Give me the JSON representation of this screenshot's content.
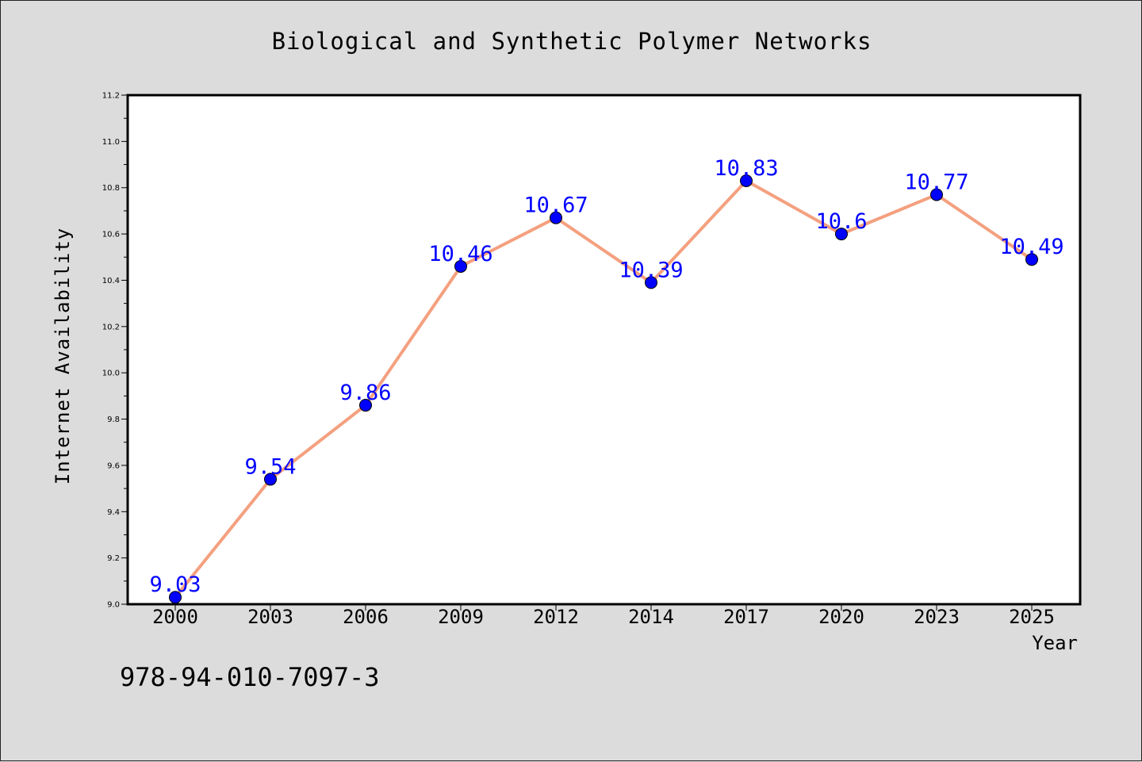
{
  "figure": {
    "isbn_text": "978-94-010-7097-3"
  },
  "chart_data": {
    "type": "line",
    "title": "Biological and Synthetic Polymer Networks",
    "xlabel": "Year",
    "ylabel": "Internet Availability",
    "categories": [
      "2000",
      "2003",
      "2006",
      "2009",
      "2012",
      "2014",
      "2017",
      "2020",
      "2023",
      "2025"
    ],
    "series": [
      {
        "values": [
          9.03,
          9.54,
          9.86,
          10.46,
          10.67,
          10.39,
          10.83,
          10.6,
          10.77,
          10.49
        ],
        "data_labels": [
          "9.03",
          "9.54",
          "9.86",
          "10.46",
          "10.67",
          "10.39",
          "10.83",
          "10.6",
          "10.77",
          "10.49"
        ],
        "line_color": "#f4a07f",
        "marker_color": "#0000ff"
      }
    ],
    "ylim": [
      9.0,
      11.2
    ],
    "yticks": [
      "9.0",
      "9.2",
      "9.4",
      "9.6",
      "9.8",
      "10.0",
      "10.2",
      "10.4",
      "10.6",
      "10.8",
      "11.0",
      "11.2"
    ],
    "grid": false,
    "legend": "none"
  }
}
